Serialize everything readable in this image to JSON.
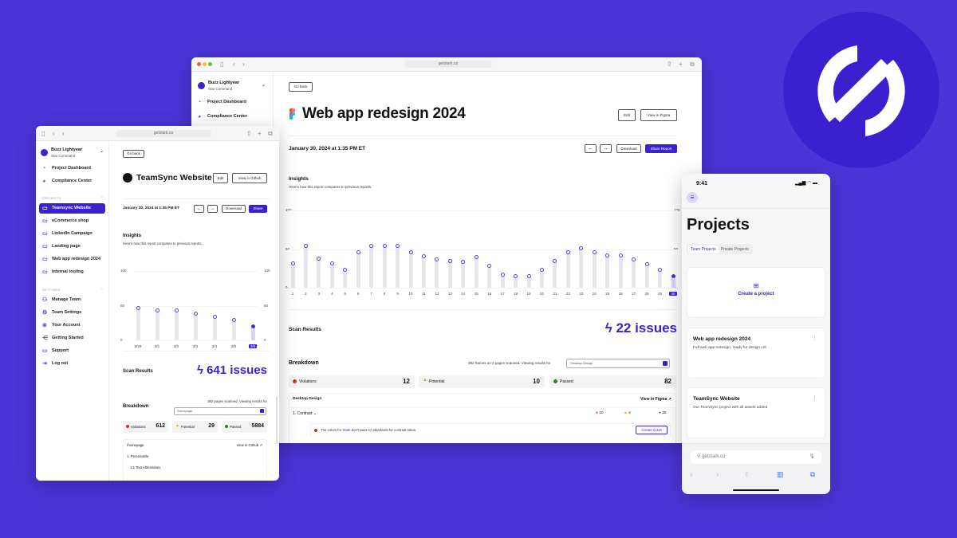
{
  "brand": {
    "bg": "#4b34d8",
    "logo_circle": "#3a20cf",
    "accent": "#3b22d1"
  },
  "main": {
    "url": "getstark.co",
    "user": {
      "name": "Buzz Lightyear",
      "org": "Star Command"
    },
    "nav": [
      "Project Dashboard",
      "Compliance Center"
    ],
    "go_back": "Go back",
    "title": "Web app redesign 2024",
    "edit": "Edit",
    "view": "View in Figma",
    "date": "January 30, 2024 at 1:35 PM ET",
    "download": "Download",
    "share": "Share Report",
    "insights": "Insights",
    "insights_sub": "Here's how this report compares to previous reports.",
    "scan_label": "Scan Results",
    "issues": "22 issues",
    "breakdown": "Breakdown",
    "scanned": "382 frames on 2 pages scanned. Viewing results for",
    "select": "Desktop Design",
    "stats": [
      {
        "label": "Violations",
        "value": "12"
      },
      {
        "label": "Potential",
        "value": "10"
      },
      {
        "label": "Passed",
        "value": "82"
      }
    ],
    "panel_title": "Desktop Design",
    "panel_link": "View in Figma",
    "group": "1. Contrast",
    "group_counts": [
      "10",
      "4",
      "25"
    ],
    "issue_pre": "The colors for ",
    "issue_link": "Stark",
    "issue_post": " don't pass AA standards for contrast ratios.",
    "create_ticket": "Create ticket"
  },
  "left": {
    "url": "getstark.co",
    "user": {
      "name": "Buzz Lightyear",
      "org": "Star Command"
    },
    "nav": [
      "Project Dashboard",
      "Compliance Center"
    ],
    "projects_label": "PROJECTS",
    "projects": [
      "Teamsync Website",
      "eCommerce shop",
      "LinkedIn Campaign",
      "Landing page",
      "Web app redesign 2024",
      "Internal tooling"
    ],
    "settings_label": "SETTINGS",
    "settings": [
      "Manage Team",
      "Team Settings",
      "Your Account",
      "Getting Started",
      "Support",
      "Log out"
    ],
    "go_back": "Go back",
    "title": "TeamSync Website",
    "edit": "Edit",
    "view": "View in Github",
    "date": "January 30, 2024 at 1:35 PM ET",
    "download": "Download",
    "share": "Share",
    "insights": "Insights",
    "insights_sub": "Here's how this report compares to previous reports.",
    "scan_label": "Scan Results",
    "issues": "641 issues",
    "breakdown": "Breakdown",
    "scanned": "382 pages scanned. Viewing results for",
    "select": "/homepage",
    "stats": [
      {
        "label": "Violations",
        "value": "612"
      },
      {
        "label": "Potential",
        "value": "29"
      },
      {
        "label": "Passed",
        "value": "5884"
      }
    ],
    "panel_title": "/homepage",
    "panel_link": "View in Github",
    "tree": [
      "1. Perceivable",
      "1.1 Text Alternatives"
    ]
  },
  "phone": {
    "time": "9:41",
    "title": "Projects",
    "tabs": [
      "Team Projects",
      "Private Projects"
    ],
    "create": "Create a project",
    "cards": [
      {
        "title": "Web app redesign 2024",
        "desc": "Full web app redesign, ready for design crit"
      },
      {
        "title": "TeamSync Website",
        "desc": "Our TeamSync project with all assets added"
      }
    ],
    "url": "getstark.co"
  },
  "chart_data": [
    {
      "type": "bar",
      "title": "Insights",
      "categories": [
        "1",
        "2",
        "3",
        "4",
        "5",
        "6",
        "7",
        "8",
        "9",
        "10",
        "11",
        "12",
        "13",
        "14",
        "15",
        "16",
        "17",
        "18",
        "19",
        "20",
        "21",
        "22",
        "23",
        "24",
        "25",
        "26",
        "27",
        "28",
        "29",
        "30"
      ],
      "values": [
        31,
        54,
        38,
        31,
        23,
        46,
        54,
        54,
        54,
        46,
        41,
        37,
        35,
        33,
        40,
        28,
        17,
        15,
        15,
        23,
        35,
        46,
        51,
        46,
        42,
        42,
        37,
        30,
        23,
        15
      ],
      "ylim": [
        0,
        100
      ],
      "yticks": [
        "100",
        "50",
        "0"
      ],
      "selected": "30"
    },
    {
      "type": "bar",
      "title": "Insights",
      "categories": [
        "2/29",
        "3/1",
        "3/2",
        "3/3",
        "3/4",
        "3/5",
        "3/6"
      ],
      "values": [
        47,
        43,
        43,
        39,
        34,
        29,
        20
      ],
      "ylim": [
        0,
        100
      ],
      "yticks": [
        "100",
        "50",
        "0"
      ],
      "selected": "3/6"
    }
  ]
}
